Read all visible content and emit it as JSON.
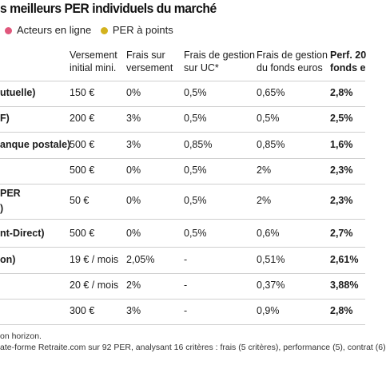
{
  "title": "s meilleurs PER individuels du marché",
  "legend": {
    "items": [
      {
        "label": "Acteurs en ligne",
        "color": "#e0577c"
      },
      {
        "label": "PER à points",
        "color": "#d3b21d"
      }
    ]
  },
  "table": {
    "headers": [
      {
        "line1": "Versement",
        "line2": "initial mini."
      },
      {
        "line1": "Frais sur",
        "line2": "versement"
      },
      {
        "line1": "Frais de gestion",
        "line2": "sur UC*"
      },
      {
        "line1": "Frais de gestion",
        "line2": "du fonds euros"
      },
      {
        "line1": "Perf. 20",
        "line2": "fonds e"
      }
    ],
    "rows": [
      {
        "name": "utuelle)",
        "cells": [
          "150 €",
          "0%",
          "0,5%",
          "0,65%",
          "2,8%"
        ]
      },
      {
        "name": "F)",
        "cells": [
          "200 €",
          "3%",
          "0,5%",
          "0,5%",
          "2,5%"
        ]
      },
      {
        "name": "anque postale)",
        "cells": [
          "500 €",
          "3%",
          "0,85%",
          "0,85%",
          "1,6%"
        ]
      },
      {
        "name": "",
        "cells": [
          "500 €",
          "0%",
          "0,5%",
          "2%",
          "2,3%"
        ]
      },
      {
        "name": "PER",
        "name2": ")",
        "cells": [
          "50 €",
          "0%",
          "0,5%",
          "2%",
          "2,3%"
        ]
      },
      {
        "name": "nt-Direct)",
        "cells": [
          "500 €",
          "0%",
          "0,5%",
          "0,6%",
          "2,7%"
        ]
      },
      {
        "name": "on)",
        "cells": [
          "19 € / mois",
          "2,05%",
          "-",
          "0,51%",
          "2,61%"
        ]
      },
      {
        "name": "",
        "cells": [
          "20 € / mois",
          "2%",
          "-",
          "0,37%",
          "3,88%"
        ]
      },
      {
        "name": "",
        "cells": [
          "300 €",
          "3%",
          "-",
          "0,9%",
          "2,8%"
        ]
      }
    ]
  },
  "footer": {
    "line1": "on horizon.",
    "line2": "ate-forme Retraite.com sur 92 PER, analysant 16 critères : frais (5 critères), performance (5), contrat (6)"
  }
}
